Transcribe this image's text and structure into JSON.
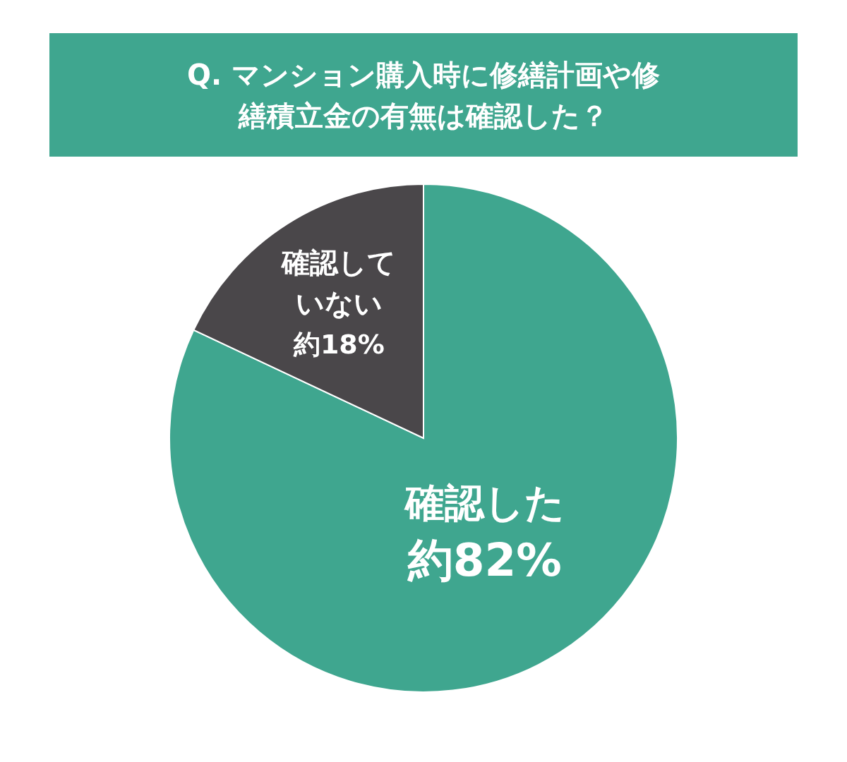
{
  "chart_data": {
    "type": "pie",
    "title": "Q. マンション購入時に修繕計画や修繕積立金の有無は確認した？",
    "categories": [
      "確認した",
      "確認していない"
    ],
    "values": [
      82,
      18
    ],
    "colors": [
      "#3fa68f",
      "#4a474a"
    ],
    "value_labels": [
      "約82%",
      "約18%"
    ]
  }
}
